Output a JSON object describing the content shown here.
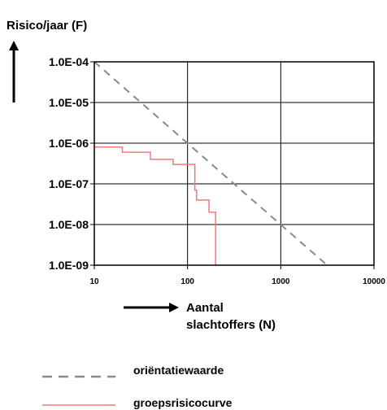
{
  "chart_data": {
    "type": "line",
    "ylabel": "Risico/jaar (F)",
    "xlabel_line1": "Aantal",
    "xlabel_line2": "slachtoffers (N)",
    "x_scale": "log",
    "y_scale": "log",
    "xlim": [
      10,
      10000
    ],
    "ylim": [
      1e-09,
      0.0001
    ],
    "grid": true,
    "legend_position": "bottom",
    "x_ticks": [
      {
        "value": 10,
        "label": "10"
      },
      {
        "value": 100,
        "label": "100"
      },
      {
        "value": 1000,
        "label": "1000"
      },
      {
        "value": 10000,
        "label": "10000"
      }
    ],
    "y_ticks": [
      {
        "value": 0.0001,
        "label": "1.0E-04"
      },
      {
        "value": 1e-05,
        "label": "1.0E-05"
      },
      {
        "value": 1e-06,
        "label": "1.0E-06"
      },
      {
        "value": 1e-07,
        "label": "1.0E-07"
      },
      {
        "value": 1e-08,
        "label": "1.0E-08"
      },
      {
        "value": 1e-09,
        "label": "1.0E-09"
      }
    ],
    "series": [
      {
        "name": "oriëntatiewaarde",
        "color": "#8a8a8a",
        "style": "dashed",
        "x": [
          10,
          3000
        ],
        "y": [
          0.0001,
          1.1e-09
        ]
      },
      {
        "name": "groepsrisicocurve",
        "color": "#f07a7a",
        "style": "solid-step",
        "x": [
          10,
          20,
          20,
          40,
          40,
          70,
          70,
          120,
          120,
          125,
          125,
          170,
          170,
          200,
          200
        ],
        "y": [
          8e-07,
          8e-07,
          6e-07,
          6e-07,
          4e-07,
          4e-07,
          3e-07,
          3e-07,
          7e-08,
          7e-08,
          4e-08,
          4e-08,
          2e-08,
          2e-08,
          1e-09
        ]
      }
    ]
  }
}
